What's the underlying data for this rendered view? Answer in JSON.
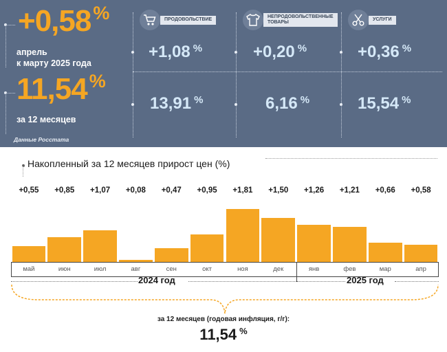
{
  "summary": {
    "month_change": {
      "value": "+0,58",
      "unit": "%",
      "line1": "апрель",
      "line2": "к марту 2025 года"
    },
    "annual_change": {
      "value": "11,54",
      "unit": "%",
      "label": "за 12 месяцев"
    },
    "source": "Данные Росстата",
    "categories": [
      {
        "name": "ПРОДОВОЛЬСТВИЕ",
        "icon": "shopping-cart-icon",
        "month_value": "+1,08",
        "annual_value": "13,91",
        "unit": "%"
      },
      {
        "name_line1": "НЕПРОДОВОЛЬСТВЕННЫЕ",
        "name_line2": "ТОВАРЫ",
        "icon": "shirt-icon",
        "month_value": "+0,20",
        "annual_value": "6,16",
        "unit": "%"
      },
      {
        "name": "УСЛУГИ",
        "icon": "scissors-icon",
        "month_value": "+0,36",
        "annual_value": "15,54",
        "unit": "%"
      }
    ]
  },
  "colors": {
    "panel": "#5a6b85",
    "accent": "#f5a623",
    "cell_value": "#d5e8f7"
  },
  "chart_data": {
    "type": "bar",
    "title": "Накопленный за 12 месяцев прирост цен (%)",
    "categories": [
      "май",
      "июн",
      "июл",
      "авг",
      "сен",
      "окт",
      "ноя",
      "дек",
      "янв",
      "фев",
      "мар",
      "апр"
    ],
    "values": [
      0.55,
      0.85,
      1.07,
      0.08,
      0.47,
      0.95,
      1.81,
      1.5,
      1.26,
      1.21,
      0.66,
      0.58
    ],
    "value_labels": [
      "+0,55",
      "+0,85",
      "+1,07",
      "+0,08",
      "+0,47",
      "+0,95",
      "+1,81",
      "+1,50",
      "+1,26",
      "+1,21",
      "+0,66",
      "+0,58"
    ],
    "year_groups": [
      {
        "label": "2024 год",
        "from": 0,
        "to": 7
      },
      {
        "label": "2025 год",
        "from": 8,
        "to": 11
      }
    ],
    "ylim": [
      0,
      1.81
    ],
    "grid": false,
    "legend": "none"
  },
  "annual": {
    "label": "за 12 месяцев (годовая инфляция, г/г):",
    "value": "11,54",
    "unit": "%"
  }
}
